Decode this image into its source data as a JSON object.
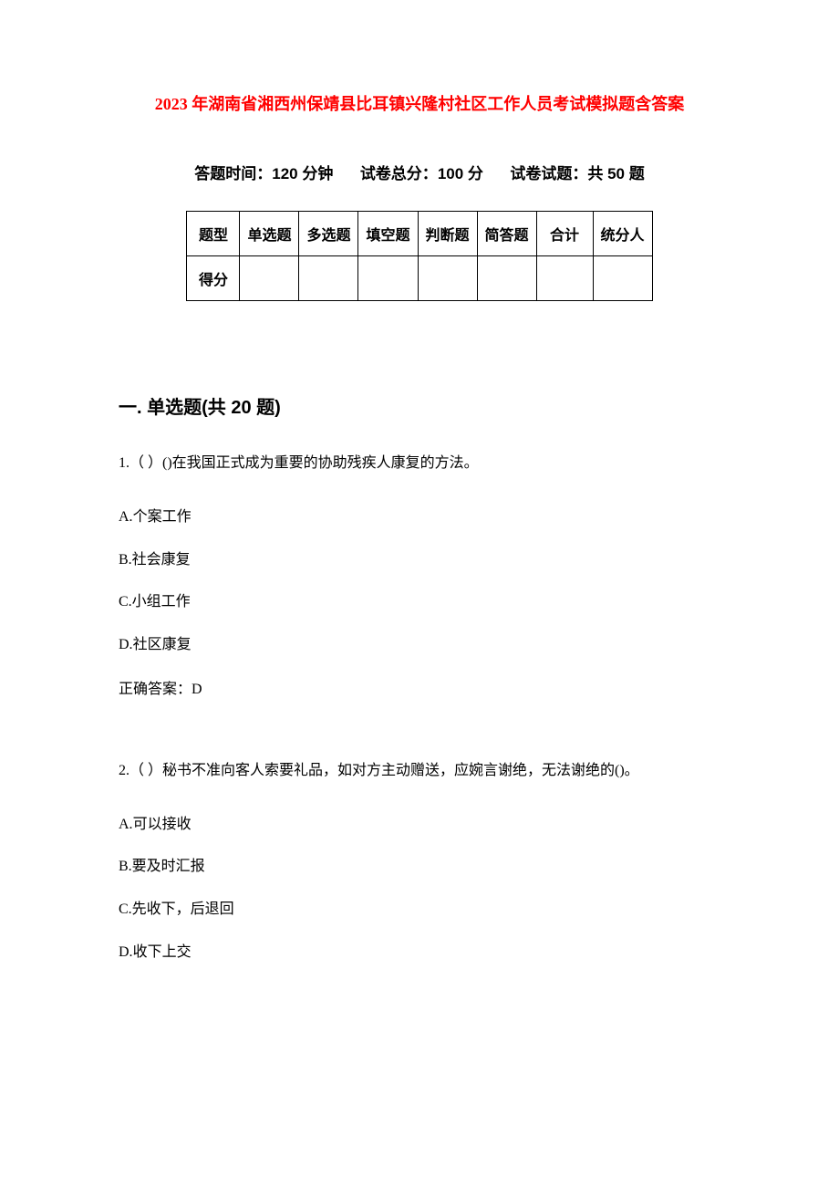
{
  "document": {
    "title": "2023 年湖南省湘西州保靖县比耳镇兴隆村社区工作人员考试模拟题含答案",
    "title_color": "#ff0000",
    "title_fontsize": 18,
    "background_color": "#ffffff",
    "text_color": "#000000",
    "body_fontsize": 16
  },
  "exam_info": {
    "time_label": "答题时间：",
    "time_value": "120 分钟",
    "total_label": "试卷总分：",
    "total_value": "100 分",
    "count_label": "试卷试题：",
    "count_value": "共 50 题",
    "fontsize": 17
  },
  "score_table": {
    "header_row": [
      "题型",
      "单选题",
      "多选题",
      "填空题",
      "判断题",
      "简答题",
      "合计",
      "统分人"
    ],
    "score_row_label": "得分",
    "border_color": "#000000",
    "fontsize": 16
  },
  "section1": {
    "heading": "一. 单选题(共 20 题)",
    "heading_fontsize": 20,
    "questions": [
      {
        "number": "1.",
        "text": "（ ）()在我国正式成为重要的协助残疾人康复的方法。",
        "options": [
          {
            "label": "A.",
            "text": "个案工作"
          },
          {
            "label": "B.",
            "text": "社会康复"
          },
          {
            "label": "C.",
            "text": "小组工作"
          },
          {
            "label": "D.",
            "text": "社区康复"
          }
        ],
        "answer_label": "正确答案：",
        "answer_value": "D"
      },
      {
        "number": "2.",
        "text": "（ ）秘书不准向客人索要礼品，如对方主动赠送，应婉言谢绝，无法谢绝的()。",
        "options": [
          {
            "label": "A.",
            "text": "可以接收"
          },
          {
            "label": "B.",
            "text": "要及时汇报"
          },
          {
            "label": "C.",
            "text": "先收下，后退回"
          },
          {
            "label": "D.",
            "text": "收下上交"
          }
        ]
      }
    ]
  }
}
